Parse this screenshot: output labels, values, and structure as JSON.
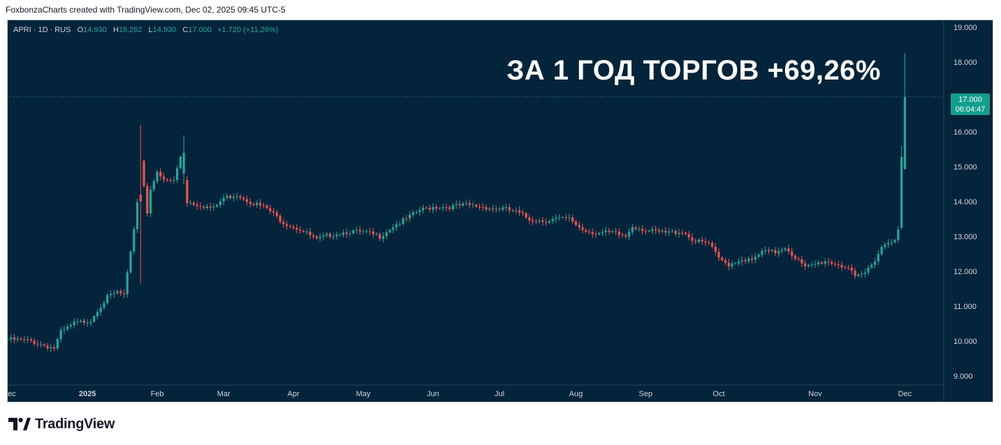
{
  "header": {
    "attribution": "FoxbonzaCharts created with TradingView.com, Dec 02, 2025 09:45 UTC-5"
  },
  "legend": {
    "symbol": "APRI · 1D · RUS",
    "o_label": "O",
    "o_value": "14.930",
    "h_label": "H",
    "h_value": "18.262",
    "l_label": "L",
    "l_value": "14.930",
    "c_label": "C",
    "c_value": "17.000",
    "change": "+1.720 (+11.26%)"
  },
  "headline": "ЗА 1 ГОД ТОРГОВ +69,26%",
  "price_tag": {
    "price": "17.000",
    "countdown": "06:04:47"
  },
  "footer": {
    "brand": "TradingView",
    "logo_icon": "tradingview-logo-icon"
  },
  "colors": {
    "background": "#03243a",
    "up": "#26a69a",
    "down": "#ef5350",
    "axis_text": "#d1d4dc",
    "tag": "#139f8d"
  },
  "chart_data": {
    "type": "candlestick",
    "title": "",
    "ylim": [
      8.6,
      19.3
    ],
    "y_ticks": [
      "9.000",
      "10.000",
      "11.000",
      "12.000",
      "13.000",
      "14.000",
      "15.000",
      "16.000",
      "17.000",
      "18.000",
      "19.000"
    ],
    "x_ticks": [
      {
        "label": "ec",
        "index": 0
      },
      {
        "label": "2025",
        "index": 24
      },
      {
        "label": "Feb",
        "index": 45
      },
      {
        "label": "Mar",
        "index": 65
      },
      {
        "label": "Apr",
        "index": 86
      },
      {
        "label": "May",
        "index": 107
      },
      {
        "label": "Jun",
        "index": 128
      },
      {
        "label": "Jul",
        "index": 148
      },
      {
        "label": "Aug",
        "index": 171
      },
      {
        "label": "Sep",
        "index": 192
      },
      {
        "label": "Oct",
        "index": 214
      },
      {
        "label": "Nov",
        "index": 243
      },
      {
        "label": "Dec",
        "index": 270
      }
    ],
    "last_price": 17.0,
    "grid": false,
    "legend_position": "top-left",
    "keypoints": [
      [
        0,
        10.05
      ],
      [
        7,
        10.0
      ],
      [
        12,
        9.85
      ],
      [
        14,
        9.8
      ],
      [
        16,
        10.25
      ],
      [
        20,
        10.5
      ],
      [
        25,
        10.6
      ],
      [
        27,
        10.9
      ],
      [
        30,
        11.25
      ],
      [
        33,
        11.4
      ],
      [
        35,
        11.3
      ],
      [
        37,
        12.5
      ],
      [
        39,
        14.0
      ],
      [
        40,
        15.2
      ],
      [
        42,
        13.7
      ],
      [
        43,
        14.4
      ],
      [
        45,
        14.8
      ],
      [
        47,
        14.6
      ],
      [
        50,
        14.6
      ],
      [
        52,
        15.3
      ],
      [
        54,
        14.0
      ],
      [
        58,
        13.9
      ],
      [
        62,
        13.8
      ],
      [
        65,
        14.1
      ],
      [
        69,
        14.2
      ],
      [
        73,
        14.0
      ],
      [
        78,
        13.8
      ],
      [
        83,
        13.4
      ],
      [
        88,
        13.2
      ],
      [
        93,
        12.9
      ],
      [
        97,
        13.05
      ],
      [
        103,
        13.15
      ],
      [
        108,
        13.1
      ],
      [
        112,
        13.0
      ],
      [
        116,
        13.3
      ],
      [
        120,
        13.5
      ],
      [
        124,
        13.75
      ],
      [
        128,
        13.85
      ],
      [
        133,
        13.85
      ],
      [
        138,
        13.9
      ],
      [
        143,
        13.85
      ],
      [
        146,
        13.8
      ],
      [
        149,
        13.8
      ],
      [
        153,
        13.7
      ],
      [
        157,
        13.5
      ],
      [
        161,
        13.45
      ],
      [
        165,
        13.5
      ],
      [
        169,
        13.5
      ],
      [
        173,
        13.2
      ],
      [
        177,
        13.1
      ],
      [
        182,
        13.1
      ],
      [
        186,
        13.0
      ],
      [
        188,
        13.3
      ],
      [
        193,
        13.15
      ],
      [
        198,
        13.1
      ],
      [
        203,
        13.15
      ],
      [
        207,
        12.85
      ],
      [
        211,
        12.8
      ],
      [
        214,
        12.35
      ],
      [
        217,
        12.2
      ],
      [
        221,
        12.35
      ],
      [
        224,
        12.3
      ],
      [
        227,
        12.55
      ],
      [
        231,
        12.55
      ],
      [
        234,
        12.7
      ],
      [
        237,
        12.4
      ],
      [
        240,
        12.1
      ],
      [
        243,
        12.2
      ],
      [
        246,
        12.3
      ],
      [
        250,
        12.2
      ],
      [
        253,
        12.1
      ],
      [
        255,
        11.8
      ],
      [
        258,
        11.95
      ],
      [
        261,
        12.35
      ],
      [
        263,
        12.7
      ],
      [
        265,
        12.85
      ],
      [
        267,
        12.95
      ],
      [
        268,
        13.2
      ],
      [
        269,
        15.3
      ],
      [
        270,
        17.0
      ]
    ],
    "notable_candles": [
      {
        "index": 40,
        "open": 14.2,
        "high": 16.2,
        "low": 11.65,
        "close": 14.0
      },
      {
        "index": 53,
        "open": 14.8,
        "high": 15.9,
        "low": 14.5,
        "close": 15.4
      },
      {
        "index": 268,
        "open": 12.9,
        "high": 13.3,
        "low": 12.8,
        "close": 13.2
      },
      {
        "index": 269,
        "open": 13.25,
        "high": 15.6,
        "low": 13.2,
        "close": 15.28
      },
      {
        "index": 270,
        "open": 14.93,
        "high": 18.262,
        "low": 14.93,
        "close": 17.0
      }
    ]
  }
}
